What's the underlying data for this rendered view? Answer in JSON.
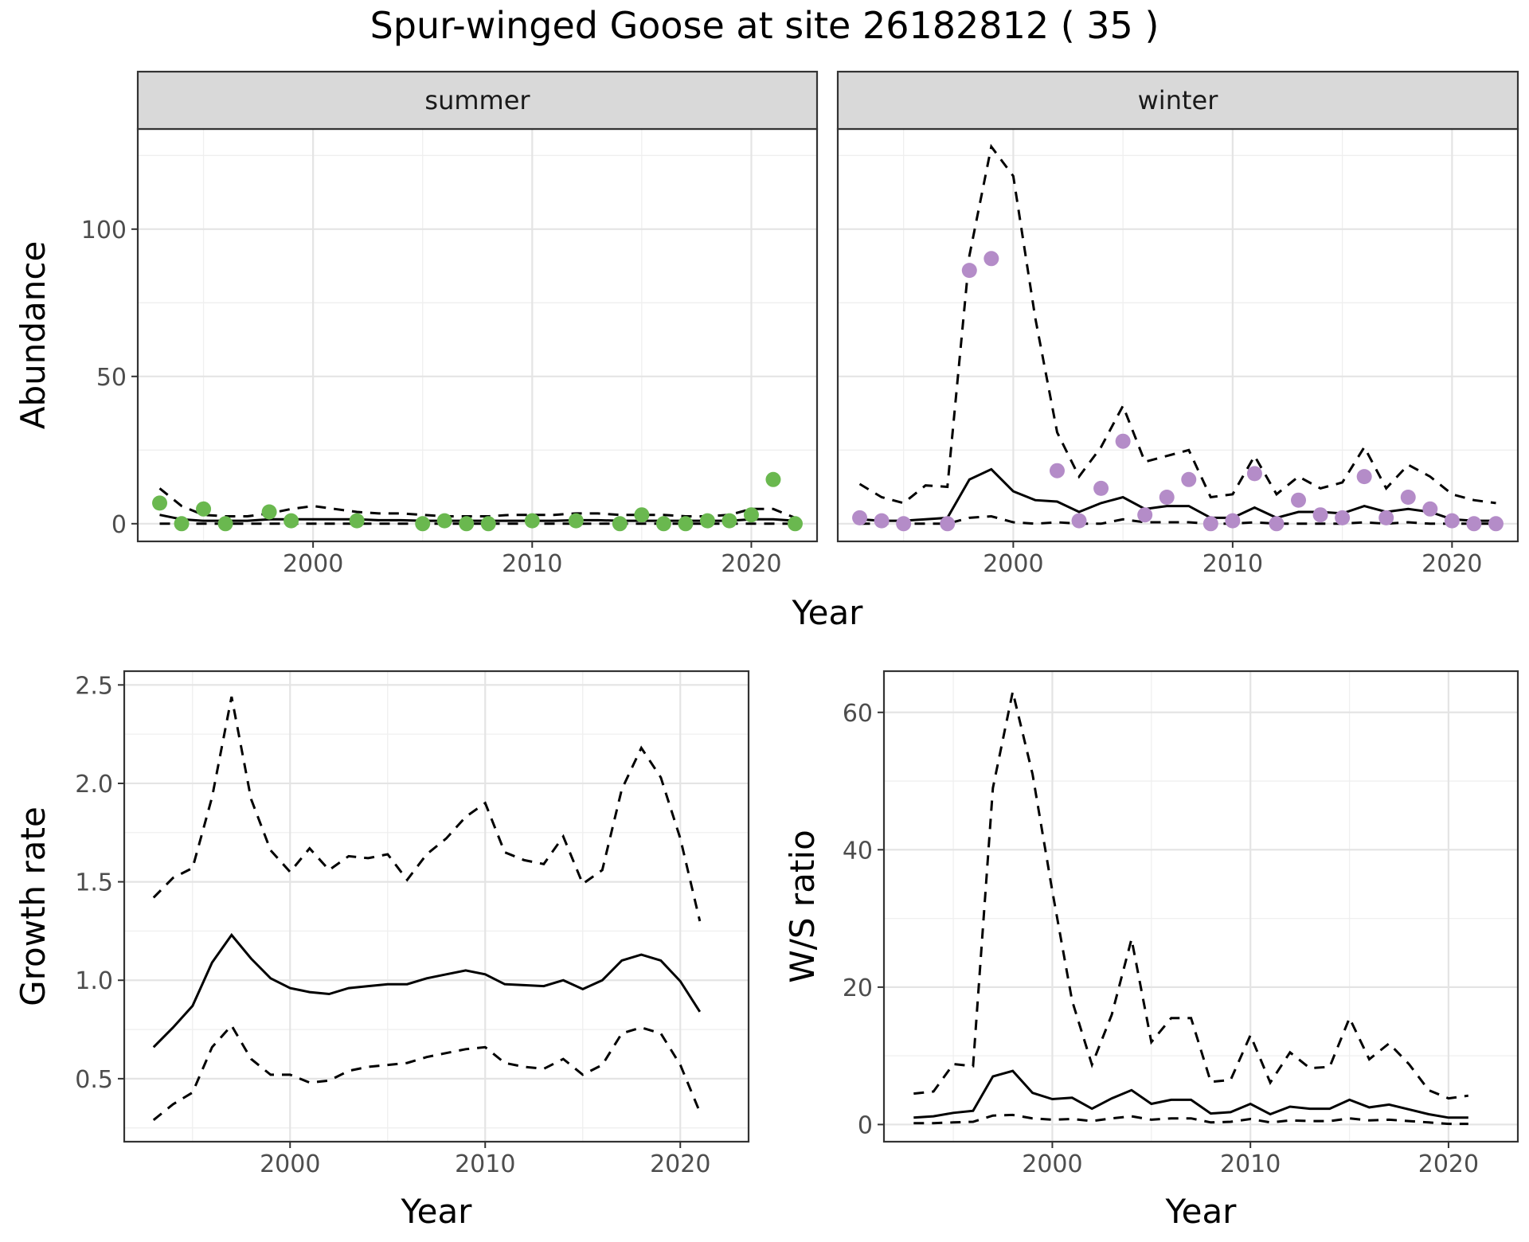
{
  "title": "Spur-winged Goose at site 26182812 ( 35 )",
  "chart_data": [
    {
      "type": "line",
      "panel": "abundance",
      "facets": [
        "summer",
        "winter"
      ],
      "xlabel": "Year",
      "ylabel": "Abundance",
      "xlim": [
        1992,
        2023
      ],
      "ylim": [
        -6,
        134
      ],
      "x_ticks": [
        2000,
        2010,
        2020
      ],
      "y_ticks": [
        0,
        50,
        100
      ],
      "grid": true,
      "summer": {
        "point_color": "#6ab84f",
        "points": {
          "x": [
            1993,
            1994,
            1995,
            1996,
            1998,
            1999,
            2002,
            2005,
            2006,
            2007,
            2008,
            2010,
            2012,
            2014,
            2015,
            2016,
            2017,
            2018,
            2019,
            2020,
            2021,
            2022
          ],
          "y": [
            7,
            0,
            5,
            0,
            4,
            1,
            1,
            0,
            1,
            0,
            0,
            1,
            1,
            0,
            3,
            0,
            0,
            1,
            1,
            3,
            15,
            0
          ]
        },
        "fit": {
          "x": [
            1993,
            1994,
            1995,
            1996,
            1997,
            1998,
            1999,
            2000,
            2001,
            2002,
            2003,
            2004,
            2005,
            2006,
            2007,
            2008,
            2009,
            2010,
            2011,
            2012,
            2013,
            2014,
            2015,
            2016,
            2017,
            2018,
            2019,
            2020,
            2021,
            2022
          ],
          "y": [
            3,
            1.5,
            1,
            1,
            1,
            1.5,
            1.5,
            1.5,
            1.5,
            1.5,
            1.2,
            1.2,
            1,
            1,
            1,
            1,
            1,
            1,
            1,
            1.2,
            1.2,
            1,
            1,
            1,
            1,
            1,
            1,
            1.5,
            1.5,
            1
          ],
          "lower": [
            0,
            0,
            0,
            0,
            0,
            0,
            0,
            0,
            0,
            0,
            0,
            0,
            0,
            0,
            0,
            0,
            0,
            0,
            0,
            0,
            0,
            0,
            0,
            0,
            0,
            0,
            0,
            0,
            0,
            0
          ],
          "upper": [
            12,
            6,
            3,
            2.5,
            2.5,
            3.5,
            5,
            6,
            5,
            4,
            3.5,
            3.5,
            3,
            2.5,
            2.5,
            2.5,
            3,
            3,
            3,
            3.5,
            3.5,
            3,
            3,
            3,
            2.5,
            2.5,
            3,
            5,
            5,
            2
          ]
        }
      },
      "winter": {
        "point_color": "#b48cc8",
        "points": {
          "x": [
            1993,
            1994,
            1995,
            1997,
            1998,
            1999,
            2002,
            2003,
            2004,
            2005,
            2006,
            2007,
            2008,
            2009,
            2010,
            2011,
            2012,
            2013,
            2014,
            2015,
            2016,
            2017,
            2018,
            2019,
            2020,
            2021,
            2022
          ],
          "y": [
            2,
            1,
            0,
            0,
            86,
            90,
            18,
            1,
            12,
            28,
            3,
            9,
            15,
            0,
            1,
            17,
            0,
            8,
            3,
            2,
            16,
            2,
            9,
            5,
            1,
            0,
            0
          ]
        },
        "fit": {
          "x": [
            1993,
            1994,
            1995,
            1996,
            1997,
            1998,
            1999,
            2000,
            2001,
            2002,
            2003,
            2004,
            2005,
            2006,
            2007,
            2008,
            2009,
            2010,
            2011,
            2012,
            2013,
            2014,
            2015,
            2016,
            2017,
            2018,
            2019,
            2020,
            2021,
            2022
          ],
          "y": [
            1.5,
            1,
            1,
            1.5,
            2,
            15,
            18.5,
            11,
            8,
            7.5,
            4,
            7,
            9,
            5,
            6,
            6,
            2,
            2,
            5.5,
            2,
            4,
            4,
            3.5,
            6,
            4,
            5,
            4,
            1.5,
            1,
            1
          ],
          "lower": [
            0,
            0,
            0,
            0,
            0,
            2,
            2.5,
            0.5,
            0,
            0.5,
            0,
            0,
            1.5,
            0.5,
            0.5,
            0.5,
            0,
            0,
            0.5,
            0,
            0,
            0,
            0,
            0.5,
            0,
            0.5,
            0,
            0,
            0,
            0
          ],
          "upper": [
            13.5,
            9,
            7,
            13,
            12.5,
            91,
            128,
            118,
            70,
            31,
            16,
            26,
            40,
            21,
            23,
            25,
            9,
            10,
            23,
            10,
            16,
            12,
            14,
            26,
            12,
            20,
            16,
            10,
            8,
            7
          ]
        }
      }
    },
    {
      "type": "line",
      "panel": "growth",
      "xlabel": "Year",
      "ylabel": "Growth rate",
      "xlim": [
        1991.5,
        2023.5
      ],
      "ylim": [
        0.18,
        2.57
      ],
      "x_ticks": [
        2000,
        2010,
        2020
      ],
      "y_ticks": [
        0.5,
        1.0,
        1.5,
        2.0,
        2.5
      ],
      "y_tick_labels": [
        "0.5",
        "1.0",
        "1.5",
        "2.0",
        "2.5"
      ],
      "grid": true,
      "x": [
        1993,
        1994,
        1995,
        1996,
        1997,
        1998,
        1999,
        2000,
        2001,
        2002,
        2003,
        2004,
        2005,
        2006,
        2007,
        2008,
        2009,
        2010,
        2011,
        2012,
        2013,
        2014,
        2015,
        2016,
        2017,
        2018,
        2019,
        2020,
        2021
      ],
      "mid": [
        0.66,
        0.76,
        0.87,
        1.09,
        1.23,
        1.11,
        1.01,
        0.96,
        0.94,
        0.93,
        0.96,
        0.97,
        0.98,
        0.98,
        1.01,
        1.03,
        1.05,
        1.03,
        0.98,
        0.975,
        0.97,
        1.0,
        0.955,
        1.0,
        1.1,
        1.13,
        1.1,
        0.995,
        0.84
      ],
      "lower": [
        0.29,
        0.37,
        0.43,
        0.66,
        0.77,
        0.6,
        0.52,
        0.52,
        0.48,
        0.49,
        0.54,
        0.56,
        0.57,
        0.58,
        0.61,
        0.63,
        0.65,
        0.66,
        0.58,
        0.56,
        0.55,
        0.6,
        0.52,
        0.57,
        0.73,
        0.76,
        0.73,
        0.57,
        0.33
      ],
      "upper": [
        1.42,
        1.52,
        1.57,
        1.93,
        2.44,
        1.92,
        1.66,
        1.55,
        1.67,
        1.56,
        1.63,
        1.62,
        1.64,
        1.51,
        1.64,
        1.72,
        1.83,
        1.9,
        1.65,
        1.61,
        1.59,
        1.73,
        1.49,
        1.56,
        1.97,
        2.18,
        2.03,
        1.72,
        1.3
      ]
    },
    {
      "type": "line",
      "panel": "ratio",
      "xlabel": "Year",
      "ylabel": "W/S ratio",
      "xlim": [
        1991.5,
        2023.5
      ],
      "ylim": [
        -2.5,
        66
      ],
      "x_ticks": [
        2000,
        2010,
        2020
      ],
      "y_ticks": [
        0,
        20,
        40,
        60
      ],
      "grid": true,
      "x": [
        1993,
        1994,
        1995,
        1996,
        1997,
        1998,
        1999,
        2000,
        2001,
        2002,
        2003,
        2004,
        2005,
        2006,
        2007,
        2008,
        2009,
        2010,
        2011,
        2012,
        2013,
        2014,
        2015,
        2016,
        2017,
        2018,
        2019,
        2020,
        2021
      ],
      "mid": [
        1,
        1.2,
        1.7,
        2,
        7,
        7.8,
        4.6,
        3.7,
        3.9,
        2.3,
        3.8,
        5,
        3,
        3.6,
        3.6,
        1.6,
        1.8,
        3,
        1.5,
        2.6,
        2.3,
        2.3,
        3.6,
        2.5,
        2.9,
        2.2,
        1.5,
        1,
        1
      ],
      "lower": [
        0.2,
        0.2,
        0.3,
        0.4,
        1.3,
        1.4,
        0.9,
        0.7,
        0.8,
        0.5,
        0.9,
        1.2,
        0.7,
        0.9,
        0.9,
        0.3,
        0.4,
        0.8,
        0.3,
        0.6,
        0.5,
        0.5,
        0.9,
        0.6,
        0.7,
        0.5,
        0.3,
        0.1,
        0.1
      ],
      "upper": [
        4.5,
        4.8,
        8.8,
        8.5,
        49,
        63,
        51,
        34,
        18,
        8.7,
        16,
        27,
        12,
        15.5,
        15.5,
        6.2,
        6.5,
        13,
        6.1,
        10.5,
        8.2,
        8.4,
        15.5,
        9.5,
        11.8,
        8.8,
        5,
        3.8,
        4.2
      ]
    }
  ]
}
